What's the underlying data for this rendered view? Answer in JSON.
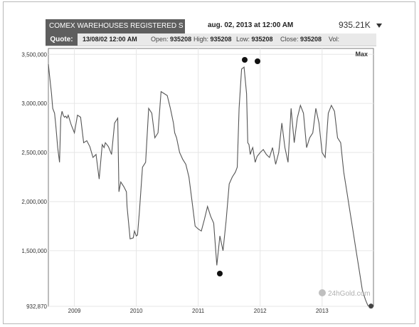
{
  "header": {
    "title": "COMEX WAREHOUSES REGISTERED S",
    "date": "aug. 02, 2013 at 12:00 AM",
    "value": "935.21K"
  },
  "quote": {
    "label": "Quote:",
    "date": "13/08/02 12:00 AM",
    "open_label": "Open:",
    "open": "935208",
    "high_label": "High:",
    "high": "935208",
    "low_label": "Low:",
    "low": "935208",
    "close_label": "Close:",
    "close": "935208",
    "vol_label": "Vol:"
  },
  "range_label": "Max",
  "watermark": "24hGold.com",
  "colors": {
    "line": "#555555",
    "header_bg": "#5e5e5e",
    "grid": "#e6e6e6"
  },
  "chart_data": {
    "type": "line",
    "title": "COMEX WAREHOUSES REGISTERED S",
    "xlabel": "",
    "ylabel": "",
    "ylim": [
      932870,
      3560000
    ],
    "xlim": [
      2008.58,
      2013.83
    ],
    "y_ticks": [
      {
        "value": 3500000,
        "label": "3,500,000"
      },
      {
        "value": 3000000,
        "label": "3,000,000"
      },
      {
        "value": 2500000,
        "label": "2,500,000"
      },
      {
        "value": 2000000,
        "label": "2,000,000"
      },
      {
        "value": 1500000,
        "label": "1,500,000"
      },
      {
        "value": 932870,
        "label": "932,870"
      }
    ],
    "x_ticks": [
      {
        "value": 2009.0,
        "label": "2009"
      },
      {
        "value": 2010.0,
        "label": "2010"
      },
      {
        "value": 2011.0,
        "label": "2011"
      },
      {
        "value": 2012.0,
        "label": "2012"
      },
      {
        "value": 2013.0,
        "label": "2013"
      }
    ],
    "grid": true,
    "series": [
      {
        "x": [
          2008.58,
          2008.6,
          2008.63,
          2008.65,
          2008.68,
          2008.7,
          2008.73,
          2008.76,
          2008.78,
          2008.8,
          2008.82,
          2008.84,
          2008.86,
          2008.88,
          2008.9,
          2008.95,
          2009.0,
          2009.05,
          2009.1,
          2009.15,
          2009.2,
          2009.25,
          2009.3,
          2009.35,
          2009.4,
          2009.45,
          2009.48,
          2009.5,
          2009.55,
          2009.6,
          2009.65,
          2009.7,
          2009.72,
          2009.75,
          2009.8,
          2009.84,
          2009.85,
          2009.9,
          2009.95,
          2009.97,
          2010.0,
          2010.02,
          2010.05,
          2010.1,
          2010.15,
          2010.2,
          2010.25,
          2010.3,
          2010.35,
          2010.4,
          2010.45,
          2010.5,
          2010.55,
          2010.6,
          2010.62,
          2010.65,
          2010.7,
          2010.75,
          2010.8,
          2010.85,
          2010.9,
          2010.95,
          2011.0,
          2011.05,
          2011.1,
          2011.15,
          2011.2,
          2011.25,
          2011.3,
          2011.35,
          2011.4,
          2011.45,
          2011.5,
          2011.55,
          2011.58,
          2011.6,
          2011.63,
          2011.66,
          2011.7,
          2011.74,
          2011.78,
          2011.8,
          2011.82,
          2011.84,
          2011.86,
          2011.88,
          2011.92,
          2011.95,
          2012.0,
          2012.05,
          2012.1,
          2012.15,
          2012.2,
          2012.25,
          2012.3,
          2012.35,
          2012.4,
          2012.45,
          2012.5,
          2012.55,
          2012.6,
          2012.65,
          2012.7,
          2012.75,
          2012.8,
          2012.85,
          2012.9,
          2012.95,
          2013.0,
          2013.05,
          2013.1,
          2013.15,
          2013.2,
          2013.25,
          2013.3,
          2013.35,
          2013.4,
          2013.45,
          2013.5,
          2013.55,
          2013.6,
          2013.65,
          2013.7,
          2013.74,
          2013.79
        ],
        "y": [
          3400000,
          3280000,
          3100000,
          2950000,
          2900000,
          2780000,
          2550000,
          2400000,
          2850000,
          2920000,
          2880000,
          2860000,
          2870000,
          2850000,
          2880000,
          2780000,
          2700000,
          2880000,
          2860000,
          2600000,
          2620000,
          2560000,
          2450000,
          2480000,
          2230000,
          2580000,
          2550000,
          2600000,
          2560000,
          2480000,
          2800000,
          2850000,
          2100000,
          2200000,
          2150000,
          2100000,
          1950000,
          1620000,
          1630000,
          1700000,
          1650000,
          1660000,
          1900000,
          2350000,
          2400000,
          2950000,
          2900000,
          2650000,
          2700000,
          3120000,
          3100000,
          3080000,
          2950000,
          2800000,
          2700000,
          2650000,
          2500000,
          2430000,
          2380000,
          2250000,
          2000000,
          1750000,
          1720000,
          1700000,
          1820000,
          1950000,
          1850000,
          1780000,
          1350000,
          1650000,
          1500000,
          1800000,
          2180000,
          2250000,
          2280000,
          2300000,
          2350000,
          2950000,
          3350000,
          3370000,
          3100000,
          2600000,
          2580000,
          2480000,
          2520000,
          2550000,
          2400000,
          2460000,
          2500000,
          2530000,
          2480000,
          2450000,
          2550000,
          2380000,
          2500000,
          2800000,
          2550000,
          2400000,
          2950000,
          2600000,
          2850000,
          2980000,
          2900000,
          2550000,
          2650000,
          2700000,
          2950000,
          2800000,
          2500000,
          2450000,
          2900000,
          2980000,
          2920000,
          2650000,
          2600000,
          2300000,
          2100000,
          1900000,
          1700000,
          1500000,
          1300000,
          1100000,
          1000000,
          940000,
          935208
        ]
      }
    ]
  }
}
